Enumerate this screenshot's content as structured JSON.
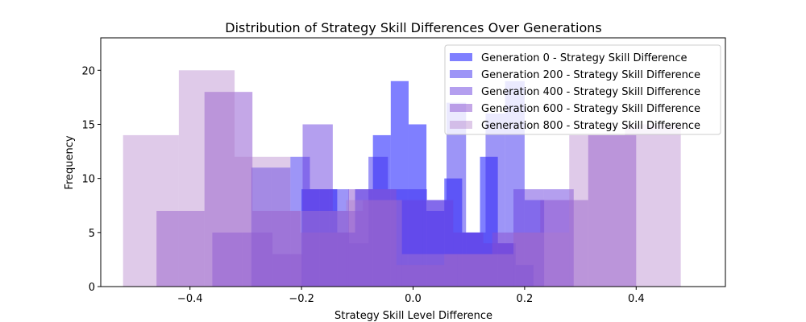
{
  "chart_data": {
    "type": "bar",
    "title": "Distribution of Strategy Skill Differences Over Generations",
    "xlabel": "Strategy Skill Level Difference",
    "ylabel": "Frequency",
    "xlim": [
      -0.56,
      0.56
    ],
    "ylim": [
      0,
      23
    ],
    "xticks": [
      -0.4,
      -0.2,
      0.0,
      0.2,
      0.4
    ],
    "xtick_labels": [
      "−0.4",
      "−0.2",
      "0.0",
      "0.2",
      "0.4"
    ],
    "yticks": [
      0,
      5,
      10,
      15,
      20
    ],
    "ytick_labels": [
      "0",
      "5",
      "10",
      "15",
      "20"
    ],
    "grid": false,
    "legend_position": "top-right",
    "series": [
      {
        "name": "Generation 0 - Strategy Skill Difference",
        "color": "#0000ff",
        "opacity": 0.5,
        "bin_edges": [
          -0.2,
          -0.168,
          -0.136,
          -0.104,
          -0.072,
          -0.04,
          -0.008,
          0.024,
          0.056,
          0.088,
          0.12,
          0.152,
          0.184,
          0.216
        ],
        "counts": [
          9,
          9,
          5,
          9,
          14,
          19,
          15,
          7,
          10,
          5,
          12,
          4,
          2
        ]
      },
      {
        "name": "Generation 200 - Strategy Skill Difference",
        "color": "#3b2bf0",
        "opacity": 0.5,
        "bin_edges": [
          -0.29,
          -0.255,
          -0.22,
          -0.185,
          -0.15,
          -0.115,
          -0.08,
          -0.045,
          -0.01,
          0.025,
          0.06,
          0.095,
          0.13,
          0.165,
          0.2,
          0.235
        ],
        "counts": [
          11,
          11,
          12,
          9,
          9,
          4,
          12,
          9,
          9,
          8,
          17,
          5,
          16,
          19,
          8
        ]
      },
      {
        "name": "Generation 400 - Strategy Skill Difference",
        "color": "#6a3fe0",
        "opacity": 0.5,
        "bin_edges": [
          -0.36,
          -0.306,
          -0.252,
          -0.198,
          -0.144,
          -0.09,
          -0.036,
          0.018,
          0.072,
          0.126,
          0.18,
          0.234,
          0.288
        ],
        "counts": [
          5,
          5,
          3,
          15,
          7,
          8,
          8,
          8,
          5,
          4,
          9,
          9
        ]
      },
      {
        "name": "Generation 600 - Strategy Skill Difference",
        "color": "#8a4fd0",
        "opacity": 0.5,
        "bin_edges": [
          -0.46,
          -0.374,
          -0.288,
          -0.202,
          -0.116,
          -0.03,
          0.056,
          0.142,
          0.228,
          0.314,
          0.4
        ],
        "counts": [
          7,
          18,
          7,
          5,
          9,
          2,
          3,
          5,
          8,
          14
        ]
      },
      {
        "name": "Generation 800 - Strategy Skill Difference",
        "color": "#b07ac8",
        "opacity": 0.4,
        "bin_edges": [
          -0.52,
          -0.42,
          -0.32,
          -0.22,
          -0.12,
          -0.02,
          0.08,
          0.18,
          0.28,
          0.38,
          0.48
        ],
        "counts": [
          14,
          20,
          12,
          7,
          8,
          3,
          3,
          5,
          14,
          15
        ]
      }
    ]
  }
}
